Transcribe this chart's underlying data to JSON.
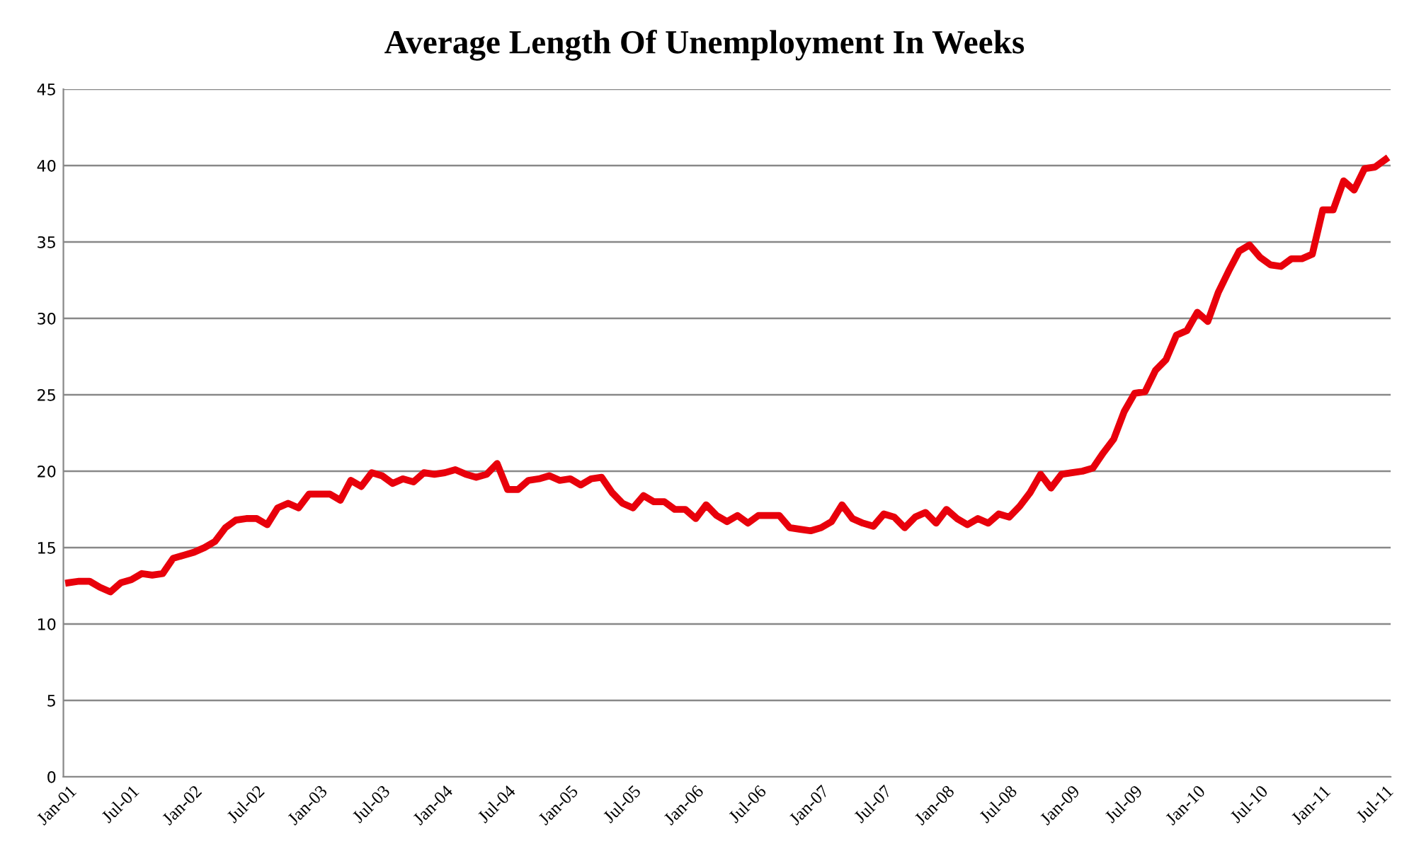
{
  "chart_data": {
    "type": "line",
    "title": "Average Length Of Unemployment In Weeks",
    "categories": [
      "Jan-01",
      null,
      null,
      null,
      null,
      null,
      "Jul-01",
      null,
      null,
      null,
      null,
      null,
      "Jan-02",
      null,
      null,
      null,
      null,
      null,
      "Jul-02",
      null,
      null,
      null,
      null,
      null,
      "Jan-03",
      null,
      null,
      null,
      null,
      null,
      "Jul-03",
      null,
      null,
      null,
      null,
      null,
      "Jan-04",
      null,
      null,
      null,
      null,
      null,
      "Jul-04",
      null,
      null,
      null,
      null,
      null,
      "Jan-05",
      null,
      null,
      null,
      null,
      null,
      "Jul-05",
      null,
      null,
      null,
      null,
      null,
      "Jan-06",
      null,
      null,
      null,
      null,
      null,
      "Jul-06",
      null,
      null,
      null,
      null,
      null,
      "Jan-07",
      null,
      null,
      null,
      null,
      null,
      "Jul-07",
      null,
      null,
      null,
      null,
      null,
      "Jan-08",
      null,
      null,
      null,
      null,
      null,
      "Jul-08",
      null,
      null,
      null,
      null,
      null,
      "Jan-09",
      null,
      null,
      null,
      null,
      null,
      "Jul-09",
      null,
      null,
      null,
      null,
      null,
      "Jan-10",
      null,
      null,
      null,
      null,
      null,
      "Jul-10",
      null,
      null,
      null,
      null,
      null,
      "Jan-11",
      null,
      null,
      null,
      null,
      null,
      "Jul-11"
    ],
    "series": [
      {
        "color": "#e8000b",
        "values": [
          12.7,
          12.8,
          12.8,
          12.4,
          12.1,
          12.7,
          12.9,
          13.3,
          13.2,
          13.3,
          14.3,
          14.5,
          14.7,
          15.0,
          15.4,
          16.3,
          16.8,
          16.9,
          16.9,
          16.5,
          17.6,
          17.9,
          17.6,
          18.5,
          18.5,
          18.5,
          18.1,
          19.4,
          19.0,
          19.9,
          19.7,
          19.2,
          19.5,
          19.3,
          19.9,
          19.8,
          19.9,
          20.1,
          19.8,
          19.6,
          19.8,
          20.5,
          18.8,
          18.8,
          19.4,
          19.5,
          19.7,
          19.4,
          19.5,
          19.1,
          19.5,
          19.6,
          18.6,
          17.9,
          17.6,
          18.4,
          18.0,
          18.0,
          17.5,
          17.5,
          16.9,
          17.8,
          17.1,
          16.7,
          17.1,
          16.6,
          17.1,
          17.1,
          17.1,
          16.3,
          16.2,
          16.1,
          16.3,
          16.7,
          17.8,
          16.9,
          16.6,
          16.4,
          17.2,
          17.0,
          16.3,
          17.0,
          17.3,
          16.6,
          17.5,
          16.9,
          16.5,
          16.9,
          16.6,
          17.2,
          17.0,
          17.7,
          18.6,
          19.8,
          18.9,
          19.8,
          19.9,
          20.0,
          20.2,
          21.2,
          22.1,
          23.9,
          25.1,
          25.2,
          26.6,
          27.3,
          28.9,
          29.2,
          30.4,
          29.8,
          31.7,
          33.1,
          34.4,
          34.8,
          34.0,
          33.5,
          33.4,
          33.9,
          33.9,
          34.2,
          37.1,
          37.1,
          39.0,
          38.4,
          39.8,
          39.9,
          40.4
        ]
      }
    ],
    "ylim": [
      0,
      45
    ],
    "yticks": [
      0,
      5,
      10,
      15,
      20,
      25,
      30,
      35,
      40,
      45
    ],
    "grid": "y",
    "legend": false,
    "marker": "none",
    "line_style": "solid"
  }
}
